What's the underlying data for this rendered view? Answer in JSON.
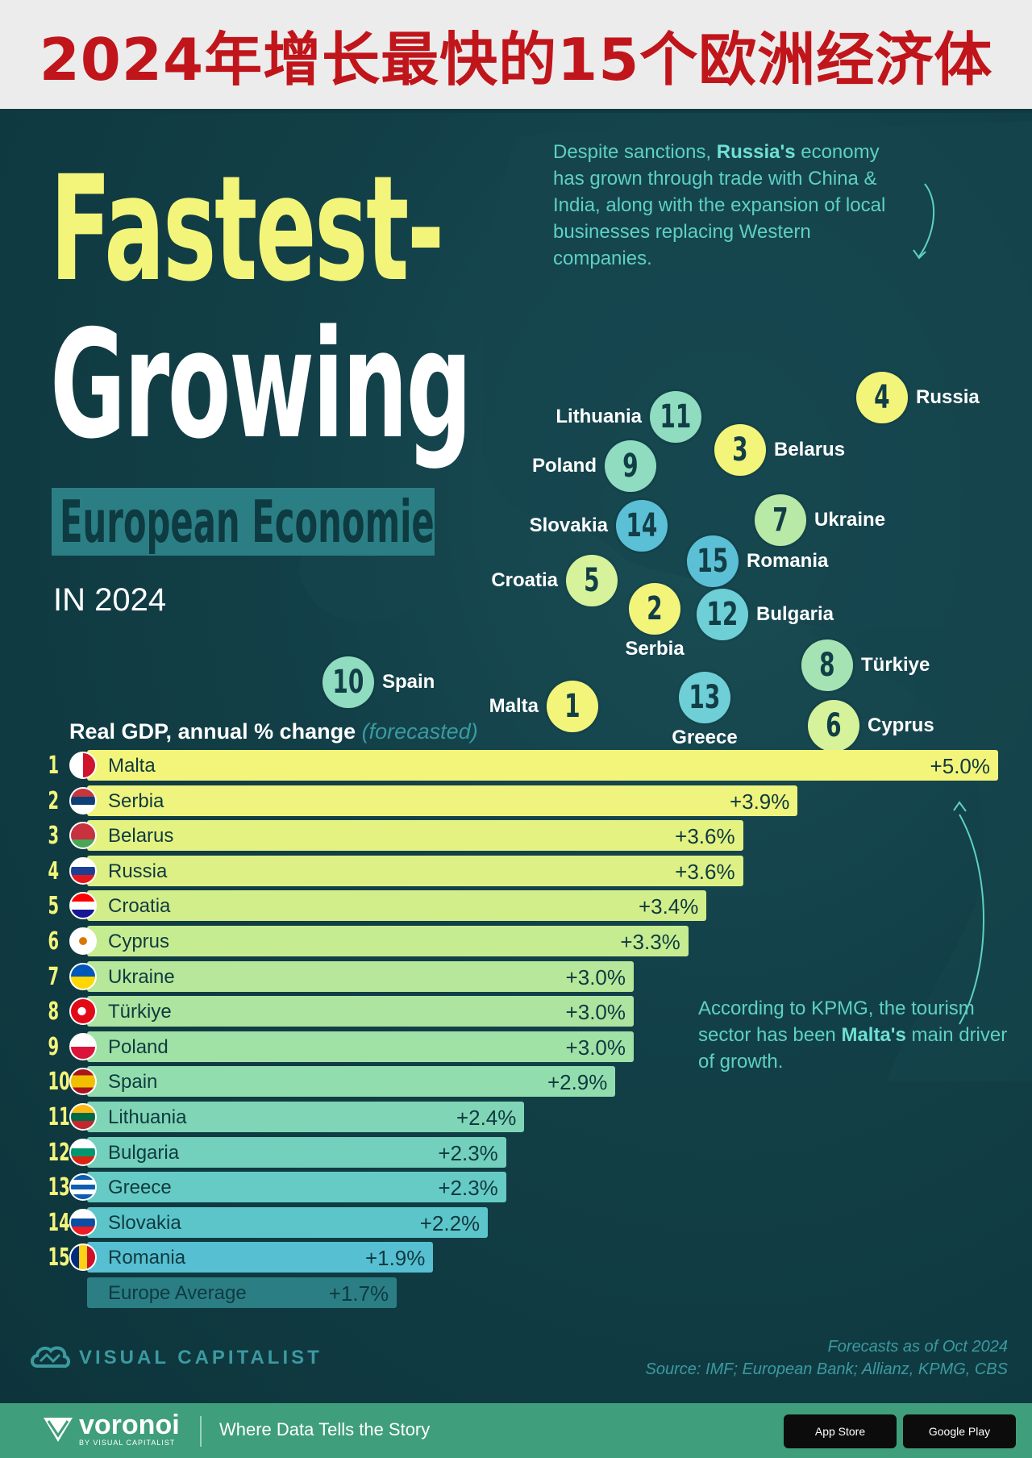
{
  "banner": {
    "title": "2024年增长最快的15个欧洲经济体"
  },
  "header": {
    "title_line1": "Fastest-",
    "title_line2": "Growing",
    "title_line3": "European Economies",
    "year": "IN 2024"
  },
  "notes": {
    "russia_pre": "Despite sanctions, ",
    "russia_bold": "Russia's",
    "russia_post": " economy has grown through trade with China & India, along with the expansion of local businesses replacing Western companies.",
    "malta_pre": "According to KPMG, the tourism sector has been ",
    "malta_bold": "Malta's",
    "malta_post": " main driver of growth."
  },
  "map_markers": [
    {
      "rank": "4",
      "name": "Russia"
    },
    {
      "rank": "11",
      "name": "Lithuania"
    },
    {
      "rank": "3",
      "name": "Belarus"
    },
    {
      "rank": "9",
      "name": "Poland"
    },
    {
      "rank": "14",
      "name": "Slovakia"
    },
    {
      "rank": "7",
      "name": "Ukraine"
    },
    {
      "rank": "15",
      "name": "Romania"
    },
    {
      "rank": "5",
      "name": "Croatia"
    },
    {
      "rank": "2",
      "name": "Serbia"
    },
    {
      "rank": "12",
      "name": "Bulgaria"
    },
    {
      "rank": "8",
      "name": "Türkiye"
    },
    {
      "rank": "10",
      "name": "Spain"
    },
    {
      "rank": "1",
      "name": "Malta"
    },
    {
      "rank": "13",
      "name": "Greece"
    },
    {
      "rank": "6",
      "name": "Cyprus"
    }
  ],
  "chart_data": {
    "type": "bar",
    "title": "Real GDP, annual % change",
    "subtitle": "(forecasted)",
    "categories": [
      "Malta",
      "Serbia",
      "Belarus",
      "Russia",
      "Croatia",
      "Cyprus",
      "Ukraine",
      "Türkiye",
      "Poland",
      "Spain",
      "Lithuania",
      "Bulgaria",
      "Greece",
      "Slovakia",
      "Romania"
    ],
    "values": [
      5.0,
      3.9,
      3.6,
      3.6,
      3.4,
      3.3,
      3.0,
      3.0,
      3.0,
      2.9,
      2.4,
      2.3,
      2.3,
      2.2,
      1.9
    ],
    "labels": [
      "+5.0%",
      "+3.9%",
      "+3.6%",
      "+3.6%",
      "+3.4%",
      "+3.3%",
      "+3.0%",
      "+3.0%",
      "+3.0%",
      "+2.9%",
      "+2.4%",
      "+2.3%",
      "+2.3%",
      "+2.2%",
      "+1.9%"
    ],
    "ranks": [
      "1",
      "2",
      "3",
      "4",
      "5",
      "6",
      "7",
      "8",
      "9",
      "10",
      "11",
      "12",
      "13",
      "14",
      "15"
    ],
    "average": {
      "name": "Europe Average",
      "value": 1.7,
      "label": "+1.7%"
    },
    "xlim": [
      0,
      5.0
    ]
  },
  "source": {
    "line1": "Forecasts as of Oct 2024",
    "line2": "Source: IMF; European Bank; Allianz, KPMG, CBS"
  },
  "brand": {
    "name": "VISUAL CAPITALIST",
    "voronoi": "voronoi",
    "voronoi_sub": "BY VISUAL CAPITALIST",
    "tagline": "Where Data Tells the Story",
    "app_store": "App Store",
    "google_play": "Google Play"
  },
  "colors": {
    "banner_text": "#c0151b",
    "title_yellow": "#f3f57a",
    "accent_teal": "#5ed0c4",
    "background": "#123f47",
    "footer": "#3f9e7b"
  }
}
